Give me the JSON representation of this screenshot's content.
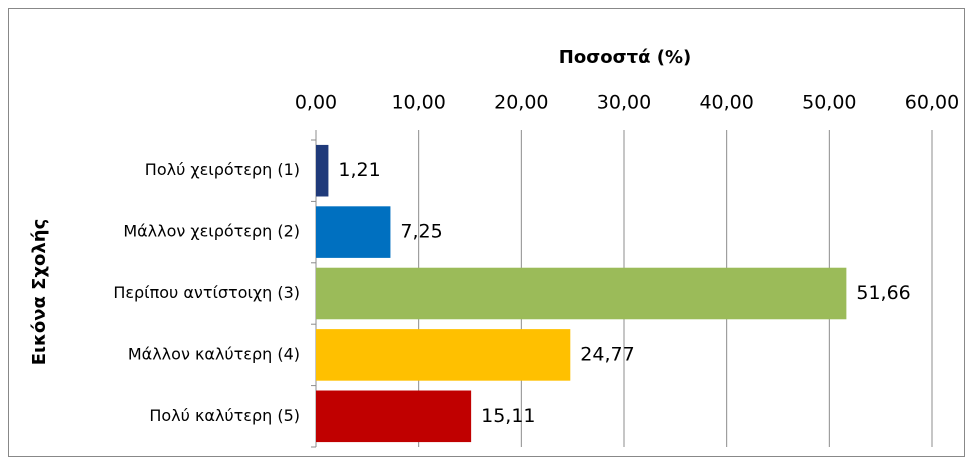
{
  "chart_data": {
    "type": "bar",
    "xlabel": "Ποσοστά (%)",
    "ylabel": "Εικόνα Σχολής",
    "categories": [
      "Πολύ χειρότερη (1)",
      "Μάλλον χειρότερη (2)",
      "Περίπου αντίστοιχη (3)",
      "Μάλλον καλύτερη (4)",
      "Πολύ καλύτερη (5)"
    ],
    "values": [
      1.21,
      7.25,
      51.66,
      24.77,
      15.11
    ],
    "value_labels": [
      "1,21",
      "7,25",
      "51,66",
      "24,77",
      "15,11"
    ],
    "colors": [
      "#1f3a7a",
      "#0070c0",
      "#9bbb59",
      "#ffc000",
      "#c00000"
    ],
    "xlim": [
      0,
      60
    ],
    "xticks": [
      {
        "value": 0,
        "label": "0,00"
      },
      {
        "value": 10,
        "label": "10,00"
      },
      {
        "value": 20,
        "label": "20,00"
      },
      {
        "value": 30,
        "label": "30,00"
      },
      {
        "value": 40,
        "label": "40,00"
      },
      {
        "value": 50,
        "label": "50,00"
      },
      {
        "value": 60,
        "label": "60,00"
      }
    ],
    "grid": true
  }
}
